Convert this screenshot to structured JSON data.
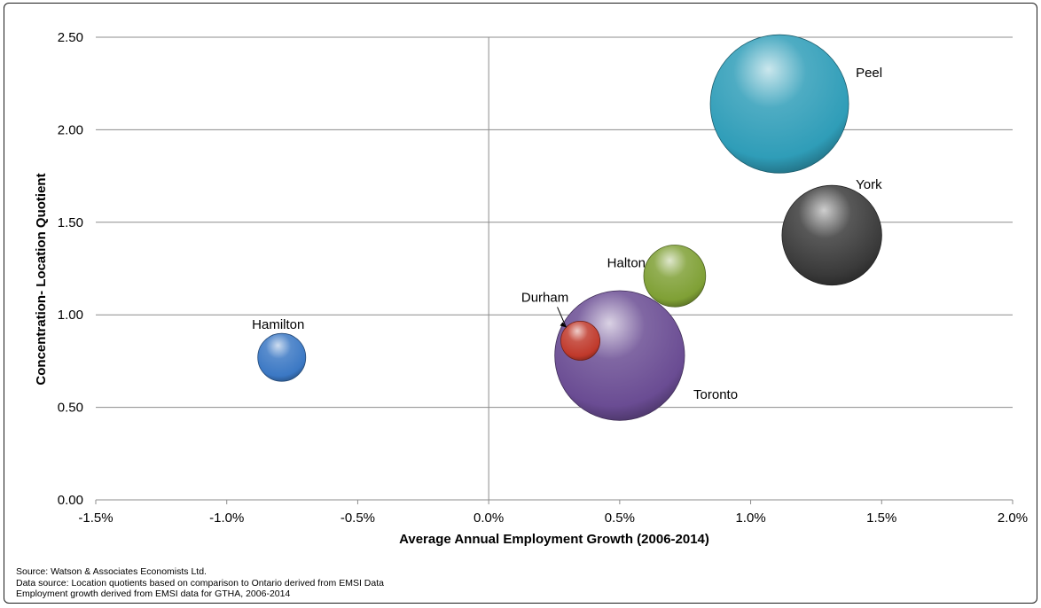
{
  "chart_data": {
    "type": "bubble",
    "xlabel": "Average Annual Employment Growth (2006-2014)",
    "ylabel": "Concentration- Location Quotient",
    "xlim": [
      -0.015,
      0.02
    ],
    "ylim": [
      0,
      2.5
    ],
    "x_ticks": [
      "-1.5%",
      "-1.0%",
      "-0.5%",
      "0.0%",
      "0.5%",
      "1.0%",
      "1.5%",
      "2.0%"
    ],
    "x_tick_values": [
      -0.015,
      -0.01,
      -0.005,
      0.0,
      0.005,
      0.01,
      0.015,
      0.02
    ],
    "y_ticks": [
      "0.00",
      "0.50",
      "1.00",
      "1.50",
      "2.00",
      "2.50"
    ],
    "y_tick_values": [
      0,
      0.5,
      1.0,
      1.5,
      2.0,
      2.5
    ],
    "horizontal_grid": true,
    "points": [
      {
        "name": "Peel",
        "x": 0.0111,
        "y": 2.14,
        "size": 1.0,
        "color": "#2f9db8"
      },
      {
        "name": "York",
        "x": 0.0131,
        "y": 1.43,
        "size": 0.52,
        "color": "#3a3a3a"
      },
      {
        "name": "Halton",
        "x": 0.0071,
        "y": 1.21,
        "size": 0.2,
        "color": "#7fa035"
      },
      {
        "name": "Toronto",
        "x": 0.005,
        "y": 0.78,
        "size": 0.88,
        "color": "#6a4c93"
      },
      {
        "name": "Durham",
        "x": 0.0035,
        "y": 0.86,
        "size": 0.08,
        "color": "#c0392b"
      },
      {
        "name": "Hamilton",
        "x": -0.0079,
        "y": 0.77,
        "size": 0.12,
        "color": "#3b78c4"
      }
    ]
  },
  "source": [
    "Source: Watson & Associates Economists Ltd.",
    "Data source: Location quotients  based on comparison to Ontario derived from EMSI Data",
    "Employment growth derived from EMSI data for GTHA, 2006-2014"
  ]
}
